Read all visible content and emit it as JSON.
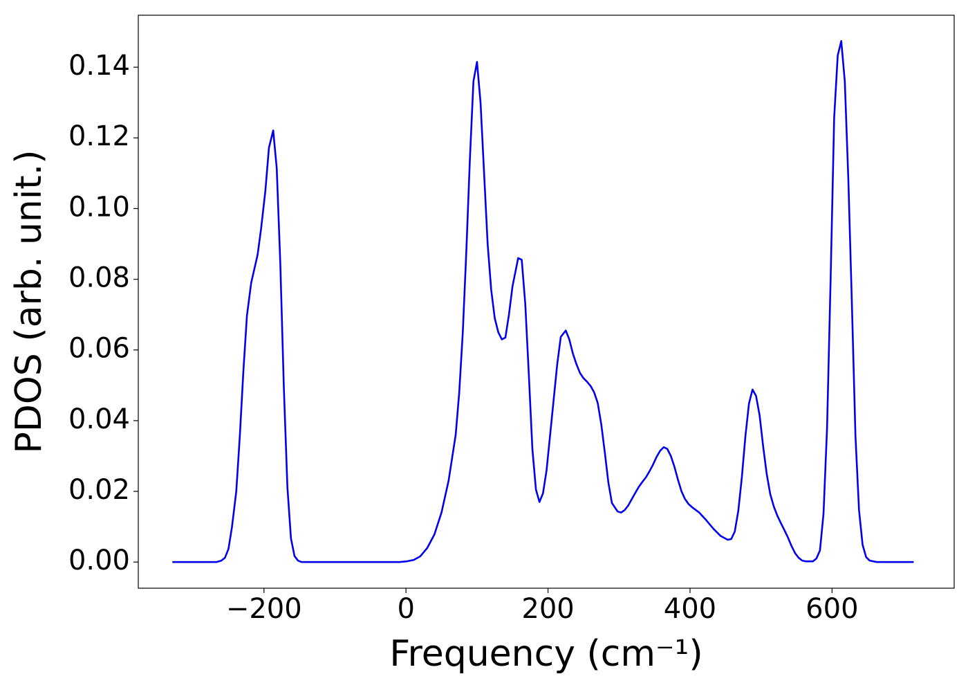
{
  "chart_data": {
    "type": "line",
    "xlabel": "Frequency (cm⁻¹)",
    "ylabel": "PDOS (arb. unit.)",
    "xlim": [
      -377,
      772
    ],
    "ylim": [
      -0.0074,
      0.1547
    ],
    "xticks": [
      {
        "value": -200,
        "label": "−200"
      },
      0,
      200,
      400,
      600
    ],
    "yticks": [
      {
        "value": 0,
        "label": "0.00"
      },
      {
        "value": 0.02,
        "label": "0.02"
      },
      {
        "value": 0.04,
        "label": "0.04"
      },
      {
        "value": 0.06,
        "label": "0.06"
      },
      {
        "value": 0.08,
        "label": "0.08"
      },
      {
        "value": 0.1,
        "label": "0.10"
      },
      {
        "value": 0.12,
        "label": "0.12"
      },
      {
        "value": 0.14,
        "label": "0.14"
      }
    ],
    "grid": false,
    "x": [
      -329,
      -267,
      -260,
      -255,
      -250,
      -245,
      -239,
      -234,
      -229,
      -224,
      -218,
      -209,
      -204,
      -198,
      -193,
      -187,
      -182,
      -177,
      -172,
      -167,
      -162,
      -157,
      -152,
      -147,
      -9,
      1,
      11,
      20,
      30,
      40,
      50,
      60,
      70,
      75,
      80,
      85,
      90,
      95,
      100,
      105,
      110,
      115,
      120,
      125,
      130,
      135,
      140,
      145,
      150,
      158,
      163,
      168,
      173,
      178,
      183,
      188,
      193,
      198,
      203,
      208,
      213,
      218,
      225,
      230,
      235,
      240,
      245,
      250,
      255,
      260,
      265,
      270,
      275,
      280,
      285,
      290,
      298,
      303,
      308,
      313,
      318,
      323,
      328,
      333,
      338,
      343,
      348,
      353,
      358,
      363,
      368,
      373,
      378,
      383,
      388,
      393,
      398,
      403,
      413,
      423,
      433,
      443,
      453,
      458,
      463,
      468,
      473,
      478,
      483,
      488,
      493,
      498,
      503,
      508,
      513,
      518,
      523,
      528,
      533,
      538,
      543,
      548,
      553,
      558,
      563,
      573,
      578,
      583,
      588,
      593,
      598,
      603,
      608,
      613,
      618,
      623,
      628,
      633,
      638,
      643,
      648,
      653,
      663,
      715
    ],
    "series": [
      {
        "name": "PDOS",
        "color": "#0000ee",
        "values": [
          0,
          0,
          0.0004,
          0.0012,
          0.0037,
          0.01,
          0.02,
          0.0357,
          0.054,
          0.0697,
          0.079,
          0.0869,
          0.0944,
          0.1051,
          0.1172,
          0.1221,
          0.1113,
          0.0845,
          0.0493,
          0.0212,
          0.0067,
          0.0017,
          0.0004,
          0,
          0,
          0.0002,
          0.0006,
          0.0016,
          0.004,
          0.0078,
          0.014,
          0.023,
          0.036,
          0.048,
          0.065,
          0.088,
          0.114,
          0.136,
          0.1415,
          0.13,
          0.11,
          0.09,
          0.077,
          0.069,
          0.065,
          0.063,
          0.0635,
          0.07,
          0.078,
          0.086,
          0.0855,
          0.073,
          0.053,
          0.032,
          0.0205,
          0.017,
          0.0195,
          0.026,
          0.036,
          0.046,
          0.056,
          0.0637,
          0.0655,
          0.063,
          0.059,
          0.056,
          0.0535,
          0.052,
          0.051,
          0.0498,
          0.048,
          0.045,
          0.039,
          0.031,
          0.0225,
          0.0167,
          0.0143,
          0.014,
          0.0147,
          0.016,
          0.0178,
          0.0196,
          0.0213,
          0.0227,
          0.024,
          0.0257,
          0.0276,
          0.0298,
          0.0315,
          0.0325,
          0.032,
          0.03,
          0.027,
          0.0233,
          0.02,
          0.0178,
          0.0164,
          0.0155,
          0.014,
          0.0118,
          0.0094,
          0.0074,
          0.0063,
          0.0065,
          0.0086,
          0.0145,
          0.024,
          0.0356,
          0.0448,
          0.0488,
          0.047,
          0.0415,
          0.0327,
          0.0249,
          0.0192,
          0.0157,
          0.0131,
          0.011,
          0.009,
          0.0069,
          0.0045,
          0.0025,
          0.0012,
          0.0004,
          0.0002,
          0.0002,
          0.001,
          0.0033,
          0.0137,
          0.038,
          0.08,
          0.1257,
          0.1433,
          0.1474,
          0.1359,
          0.108,
          0.0728,
          0.0356,
          0.0147,
          0.0049,
          0.0014,
          0.0004,
          0,
          0
        ]
      }
    ]
  }
}
